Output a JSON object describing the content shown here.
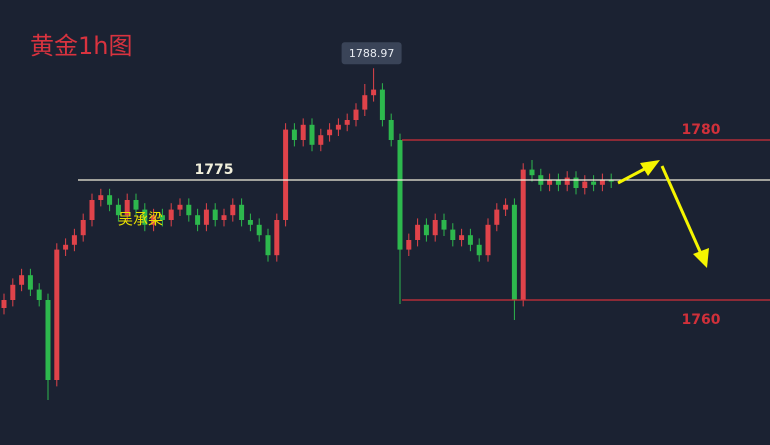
{
  "chart_data": {
    "type": "candlestick",
    "title": "黄金1h图",
    "watermark": "吴承梁",
    "price_tag": 1788.97,
    "ylim": [
      1741.875,
      1797.5
    ],
    "up_color": "#e0434a",
    "down_color": "#2db84d",
    "levels": [
      {
        "value": 1780,
        "color": "#d0303a"
      },
      {
        "value": 1775,
        "color": "#f2f0dc"
      },
      {
        "value": 1760,
        "color": "#d0303a"
      }
    ],
    "categories": [
      null,
      null,
      null,
      null,
      null,
      null,
      null,
      null,
      null,
      null,
      null,
      null,
      null,
      null,
      null,
      null,
      null,
      null,
      null,
      null,
      null,
      null,
      null,
      null,
      null,
      null,
      null,
      null,
      null,
      null,
      null,
      null,
      null,
      null,
      null,
      null,
      null,
      null,
      null,
      null,
      null,
      null,
      null,
      null,
      null,
      null,
      null,
      null,
      null,
      null,
      null,
      null,
      null,
      null,
      null,
      null,
      null,
      null,
      null,
      null,
      null,
      null,
      null,
      null,
      null,
      null,
      null,
      null,
      null,
      null
    ],
    "open": [
      1759.0,
      1760.0,
      1761.9,
      1763.1,
      1761.3,
      1760.0,
      1750.0,
      1766.3,
      1766.9,
      1768.1,
      1770.0,
      1772.5,
      1773.1,
      1771.9,
      1770.6,
      1772.5,
      1771.3,
      1769.4,
      1770.6,
      1770.0,
      1771.3,
      1771.9,
      1770.6,
      1769.4,
      1771.3,
      1770.0,
      1770.6,
      1771.9,
      1770.0,
      1769.4,
      1768.1,
      1765.6,
      1770.0,
      1781.3,
      1780.0,
      1781.9,
      1779.4,
      1780.6,
      1781.3,
      1781.9,
      1782.5,
      1783.8,
      1785.6,
      1786.3,
      1782.5,
      1780.0,
      1766.3,
      1767.5,
      1769.4,
      1768.1,
      1770.0,
      1768.8,
      1767.5,
      1768.1,
      1766.9,
      1765.6,
      1769.4,
      1771.3,
      1771.9,
      1760.0,
      1776.3,
      1775.6,
      1774.4,
      1775.0,
      1774.4,
      1775.3,
      1774.0,
      1774.8,
      1774.4,
      1775.0
    ],
    "high": [
      1760.8,
      1762.7,
      1763.9,
      1763.9,
      1762.1,
      1760.8,
      1767.1,
      1767.7,
      1768.9,
      1770.8,
      1773.3,
      1773.9,
      1773.9,
      1772.7,
      1773.3,
      1773.3,
      1772.1,
      1771.4,
      1771.4,
      1772.1,
      1772.7,
      1772.7,
      1771.4,
      1772.1,
      1772.1,
      1771.4,
      1772.7,
      1772.7,
      1770.8,
      1770.2,
      1768.9,
      1770.8,
      1782.1,
      1782.1,
      1782.7,
      1782.7,
      1781.4,
      1782.1,
      1782.7,
      1783.3,
      1784.6,
      1787.0,
      1788.97,
      1787.1,
      1783.3,
      1780.8,
      1768.3,
      1770.2,
      1770.2,
      1770.8,
      1770.8,
      1769.6,
      1768.9,
      1768.9,
      1767.7,
      1770.2,
      1772.1,
      1772.7,
      1772.7,
      1777.1,
      1777.5,
      1776.4,
      1775.8,
      1775.8,
      1776.1,
      1776.1,
      1775.6,
      1775.6,
      1775.8,
      1775.8
    ],
    "low": [
      1758.2,
      1759.2,
      1761.1,
      1760.5,
      1759.2,
      1747.5,
      1749.2,
      1765.5,
      1766.1,
      1767.3,
      1769.2,
      1771.7,
      1771.1,
      1769.8,
      1769.8,
      1770.5,
      1768.6,
      1768.6,
      1769.2,
      1769.2,
      1770.5,
      1769.8,
      1768.6,
      1768.6,
      1769.2,
      1769.2,
      1769.8,
      1769.2,
      1768.6,
      1767.3,
      1764.8,
      1764.8,
      1769.2,
      1779.2,
      1779.2,
      1778.6,
      1778.6,
      1779.8,
      1780.5,
      1781.1,
      1781.7,
      1783.0,
      1784.8,
      1781.7,
      1779.2,
      1759.5,
      1765.5,
      1766.7,
      1767.3,
      1767.3,
      1768.0,
      1766.7,
      1766.7,
      1766.1,
      1764.8,
      1764.8,
      1768.6,
      1770.5,
      1757.5,
      1759.2,
      1774.8,
      1773.6,
      1773.6,
      1773.6,
      1773.6,
      1773.2,
      1773.2,
      1773.6,
      1773.6,
      1774.0
    ],
    "close": [
      1760.0,
      1761.9,
      1763.1,
      1761.3,
      1760.0,
      1750.0,
      1766.3,
      1766.9,
      1768.1,
      1770.0,
      1772.5,
      1773.1,
      1771.9,
      1770.6,
      1772.5,
      1771.3,
      1769.4,
      1770.6,
      1770.0,
      1771.3,
      1771.9,
      1770.6,
      1769.4,
      1771.3,
      1770.0,
      1770.6,
      1771.9,
      1770.0,
      1769.4,
      1768.1,
      1765.6,
      1770.0,
      1781.3,
      1780.0,
      1781.9,
      1779.4,
      1780.6,
      1781.3,
      1781.9,
      1782.5,
      1783.8,
      1785.6,
      1786.3,
      1782.5,
      1780.0,
      1766.3,
      1767.5,
      1769.4,
      1768.1,
      1770.0,
      1768.8,
      1767.5,
      1768.1,
      1766.9,
      1765.6,
      1769.4,
      1771.3,
      1771.9,
      1760.0,
      1776.3,
      1775.6,
      1774.4,
      1775.0,
      1774.4,
      1775.3,
      1774.0,
      1774.8,
      1774.4,
      1775.0,
      1774.8
    ]
  }
}
